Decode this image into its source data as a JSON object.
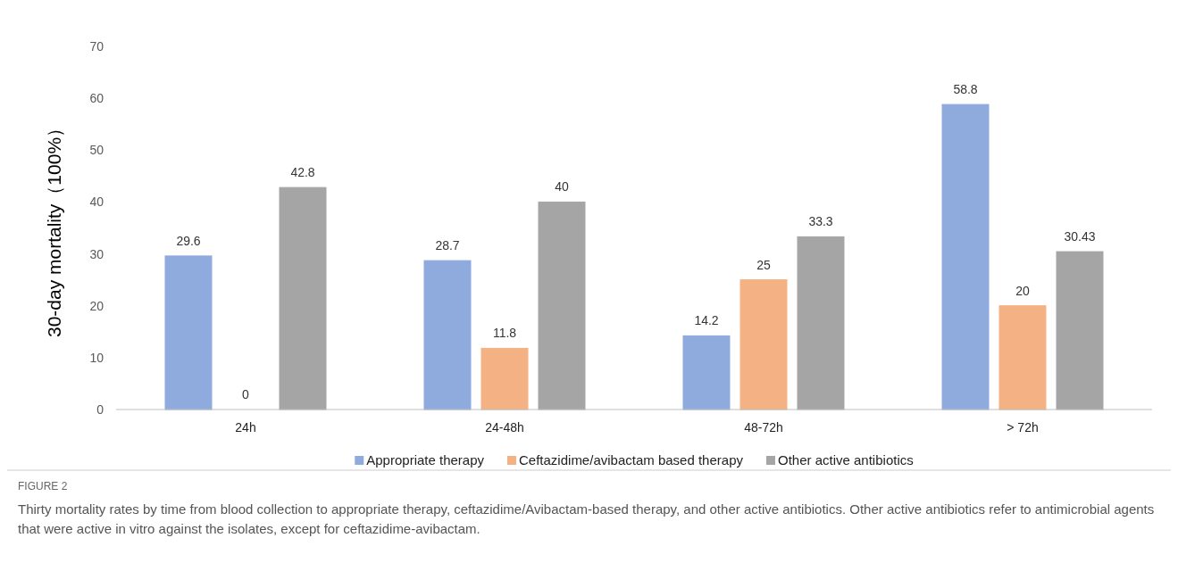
{
  "chart_data": {
    "type": "bar",
    "categories": [
      "24h",
      "24-48h",
      "48-72h",
      "> 72h"
    ],
    "series": [
      {
        "name": "Appropriate therapy",
        "color": "#8faadc",
        "values": [
          29.6,
          28.7,
          14.2,
          58.8
        ]
      },
      {
        "name": "Ceftazidime/avibactam based therapy",
        "color": "#f4b183",
        "values": [
          0,
          11.8,
          25,
          20
        ]
      },
      {
        "name": "Other active antibiotics",
        "color": "#a5a5a5",
        "values": [
          42.8,
          40,
          33.3,
          30.43
        ]
      }
    ],
    "ylabel": "30-day mortality（100%）",
    "ylim": [
      0,
      70
    ],
    "yticks": [
      0,
      10,
      20,
      30,
      40,
      50,
      60,
      70
    ],
    "data_labels": true,
    "grid": false,
    "legend": "bottom",
    "annotations": [
      "FIGURE 2",
      "Thirty mortality rates by time from blood collection to appropriate therapy, ceftazidime/Avibactam-based therapy, and other active antibiotics. Other active antibiotics refer to antimicrobial agents that were active in vitro against the isolates, except for ceftazidime-avibactam."
    ]
  }
}
